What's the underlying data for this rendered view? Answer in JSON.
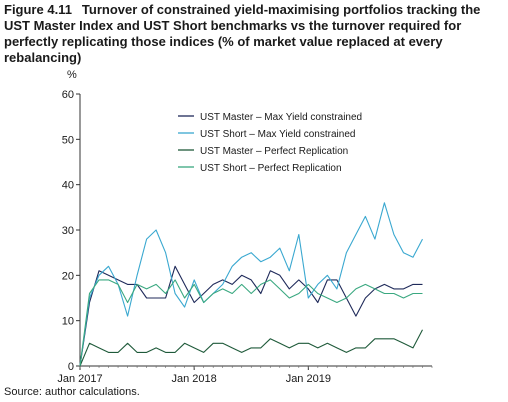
{
  "figure": {
    "number": "Figure 4.11",
    "title": "Turnover of constrained yield-maximising portfolios tracking the UST Master Index and UST Short benchmarks vs the turnover required for perfectly replicating those indices (% of market value replaced at every rebalancing)",
    "source": "Source: author calculations."
  },
  "chart_data": {
    "type": "line",
    "ylabel": "%",
    "ylim": [
      0,
      60
    ],
    "yticks": [
      0,
      10,
      20,
      30,
      40,
      50,
      60
    ],
    "xlim": [
      0,
      37
    ],
    "xticks": [
      {
        "x": 0,
        "label": "Jan 2017"
      },
      {
        "x": 12,
        "label": "Jan 2018"
      },
      {
        "x": 24,
        "label": "Jan 2019"
      }
    ],
    "grid": false,
    "legend_position": "top-right",
    "series": [
      {
        "name": "UST Master – Max Yield constrained",
        "color": "#1f2a5a",
        "values": [
          0,
          14,
          21,
          20,
          19,
          18,
          18,
          15,
          15,
          15,
          22,
          18,
          14,
          16,
          18,
          19,
          18,
          20,
          19,
          16,
          21,
          20,
          17,
          19,
          17,
          14,
          19,
          19,
          15,
          11,
          15,
          17,
          18,
          17,
          17,
          18,
          18
        ]
      },
      {
        "name": "UST Short – Max Yield constrained",
        "color": "#3aa8d0",
        "values": [
          0,
          15,
          20,
          22,
          18,
          11,
          20,
          28,
          30,
          25,
          16,
          13,
          19,
          14,
          16,
          18,
          22,
          24,
          25,
          23,
          24,
          26,
          21,
          29,
          15,
          18,
          20,
          17,
          25,
          29,
          33,
          28,
          36,
          29,
          25,
          24,
          28
        ]
      },
      {
        "name": "UST Master – Perfect Replication",
        "color": "#1f5a3a",
        "values": [
          0,
          5,
          4,
          3,
          3,
          5,
          3,
          3,
          4,
          3,
          3,
          5,
          4,
          3,
          5,
          5,
          4,
          3,
          4,
          4,
          6,
          5,
          4,
          5,
          5,
          4,
          5,
          4,
          3,
          4,
          4,
          6,
          6,
          6,
          5,
          4,
          8
        ]
      },
      {
        "name": "UST Short – Perfect Replication",
        "color": "#3aa880",
        "values": [
          0,
          16,
          19,
          19,
          18,
          14,
          18,
          17,
          18,
          16,
          19,
          15,
          18,
          14,
          16,
          17,
          16,
          18,
          16,
          18,
          19,
          17,
          15,
          16,
          18,
          16,
          15,
          14,
          15,
          17,
          18,
          17,
          16,
          16,
          15,
          16,
          16
        ]
      }
    ]
  }
}
